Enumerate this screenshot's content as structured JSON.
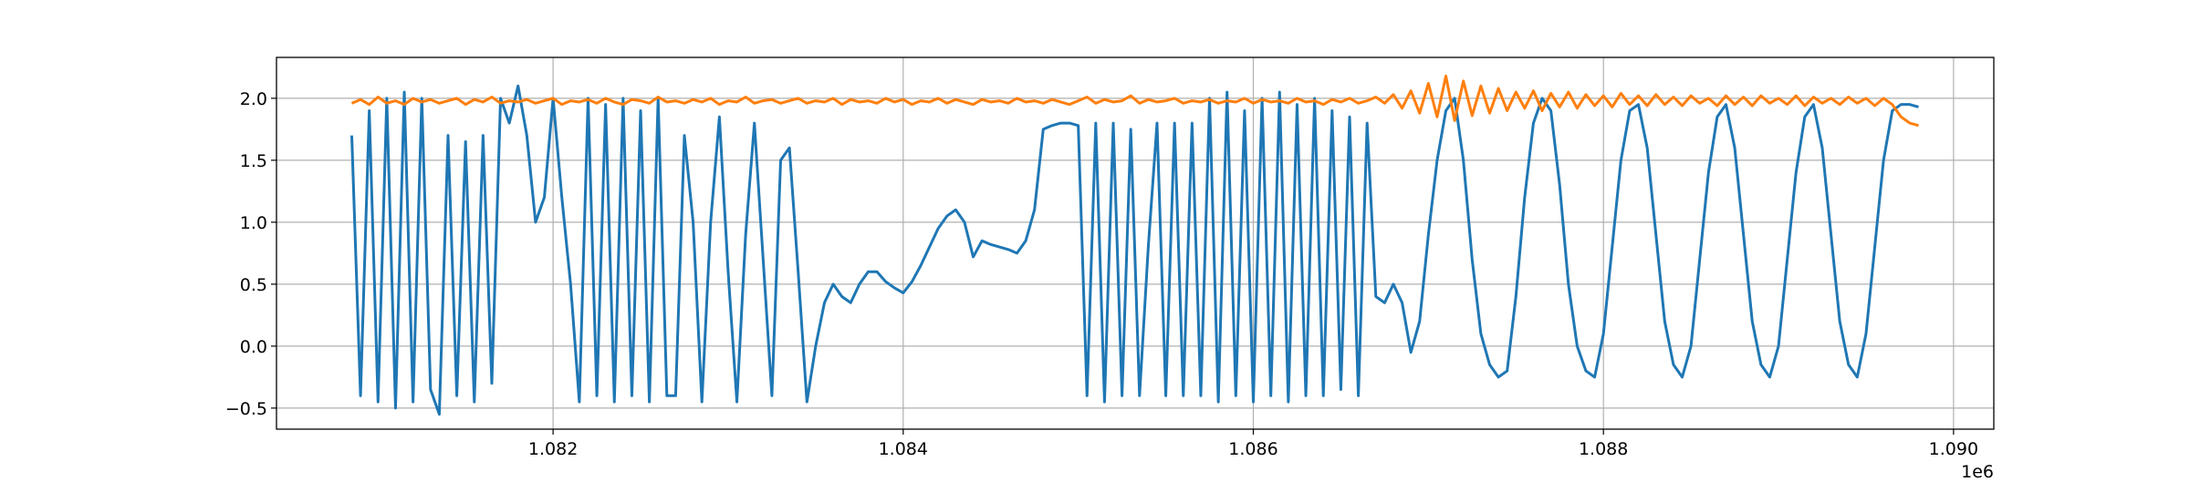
{
  "chart_data": {
    "type": "line",
    "x": [
      1080850,
      1080900,
      1080950,
      1081000,
      1081050,
      1081100,
      1081150,
      1081200,
      1081250,
      1081300,
      1081350,
      1081400,
      1081450,
      1081500,
      1081550,
      1081600,
      1081650,
      1081700,
      1081750,
      1081800,
      1081850,
      1081900,
      1081950,
      1082000,
      1082050,
      1082100,
      1082150,
      1082200,
      1082250,
      1082300,
      1082350,
      1082400,
      1082450,
      1082500,
      1082550,
      1082600,
      1082650,
      1082700,
      1082750,
      1082800,
      1082850,
      1082900,
      1082950,
      1083000,
      1083050,
      1083100,
      1083150,
      1083200,
      1083250,
      1083300,
      1083350,
      1083400,
      1083450,
      1083500,
      1083550,
      1083600,
      1083650,
      1083700,
      1083750,
      1083800,
      1083850,
      1083900,
      1083950,
      1084000,
      1084050,
      1084100,
      1084150,
      1084200,
      1084250,
      1084300,
      1084350,
      1084400,
      1084450,
      1084500,
      1084550,
      1084600,
      1084650,
      1084700,
      1084750,
      1084800,
      1084850,
      1084900,
      1084950,
      1085000,
      1085050,
      1085100,
      1085150,
      1085200,
      1085250,
      1085300,
      1085350,
      1085400,
      1085450,
      1085500,
      1085550,
      1085600,
      1085650,
      1085700,
      1085750,
      1085800,
      1085850,
      1085900,
      1085950,
      1086000,
      1086050,
      1086100,
      1086150,
      1086200,
      1086250,
      1086300,
      1086350,
      1086400,
      1086450,
      1086500,
      1086550,
      1086600,
      1086650,
      1086700,
      1086750,
      1086800,
      1086850,
      1086900,
      1086950,
      1087000,
      1087050,
      1087100,
      1087150,
      1087200,
      1087250,
      1087300,
      1087350,
      1087400,
      1087450,
      1087500,
      1087550,
      1087600,
      1087650,
      1087700,
      1087750,
      1087800,
      1087850,
      1087900,
      1087950,
      1088000,
      1088050,
      1088100,
      1088150,
      1088200,
      1088250,
      1088300,
      1088350,
      1088400,
      1088450,
      1088500,
      1088550,
      1088600,
      1088650,
      1088700,
      1088750,
      1088800,
      1088850,
      1088900,
      1088950,
      1089000,
      1089050,
      1089100,
      1089150,
      1089200,
      1089250,
      1089300,
      1089350,
      1089400,
      1089450,
      1089500,
      1089550,
      1089600,
      1089650,
      1089700,
      1089750,
      1089800
    ],
    "series": [
      {
        "color": "#1f77b4",
        "values": [
          1.7,
          -0.4,
          1.9,
          -0.45,
          2.0,
          -0.5,
          2.05,
          -0.45,
          2.0,
          -0.35,
          -0.55,
          1.7,
          -0.4,
          1.65,
          -0.45,
          1.7,
          -0.3,
          2.0,
          1.8,
          2.1,
          1.7,
          1.0,
          1.2,
          2.0,
          1.2,
          0.5,
          -0.45,
          2.0,
          -0.4,
          1.95,
          -0.45,
          2.0,
          -0.4,
          1.9,
          -0.45,
          2.0,
          -0.4,
          -0.4,
          1.7,
          1.0,
          -0.45,
          1.0,
          1.85,
          0.6,
          -0.45,
          0.9,
          1.8,
          0.7,
          -0.4,
          1.5,
          1.6,
          0.6,
          -0.45,
          0.0,
          0.35,
          0.5,
          0.4,
          0.35,
          0.5,
          0.6,
          0.6,
          0.52,
          0.47,
          0.43,
          0.52,
          0.65,
          0.8,
          0.95,
          1.05,
          1.1,
          1.0,
          0.72,
          0.85,
          0.82,
          0.8,
          0.78,
          0.75,
          0.85,
          1.1,
          1.75,
          1.78,
          1.8,
          1.8,
          1.78,
          -0.4,
          1.8,
          -0.45,
          1.8,
          -0.4,
          1.75,
          -0.4,
          0.8,
          1.8,
          -0.4,
          1.8,
          -0.4,
          1.8,
          -0.4,
          2.0,
          -0.45,
          2.05,
          -0.4,
          1.9,
          -0.45,
          2.0,
          -0.4,
          2.05,
          -0.45,
          1.95,
          -0.4,
          2.0,
          -0.4,
          1.9,
          -0.35,
          1.85,
          -0.4,
          1.8,
          0.4,
          0.35,
          0.5,
          0.35,
          -0.05,
          0.2,
          0.9,
          1.5,
          1.9,
          2.0,
          1.5,
          0.7,
          0.1,
          -0.15,
          -0.25,
          -0.2,
          0.4,
          1.2,
          1.8,
          2.0,
          1.9,
          1.3,
          0.5,
          0.0,
          -0.2,
          -0.25,
          0.1,
          0.8,
          1.5,
          1.9,
          1.95,
          1.6,
          0.9,
          0.2,
          -0.15,
          -0.25,
          0.0,
          0.7,
          1.4,
          1.85,
          1.95,
          1.6,
          0.9,
          0.2,
          -0.15,
          -0.25,
          0.0,
          0.7,
          1.4,
          1.85,
          1.95,
          1.6,
          0.9,
          0.2,
          -0.15,
          -0.25,
          0.1,
          0.8,
          1.5,
          1.9,
          1.95,
          1.95,
          1.93
        ]
      },
      {
        "color": "#ff7f0e",
        "values": [
          1.96,
          1.99,
          1.95,
          2.01,
          1.96,
          1.98,
          1.95,
          2.0,
          1.97,
          1.99,
          1.96,
          1.98,
          2.0,
          1.95,
          1.99,
          1.97,
          2.01,
          1.96,
          1.98,
          1.97,
          1.99,
          1.96,
          1.98,
          2.0,
          1.95,
          1.98,
          1.97,
          1.99,
          1.96,
          2.0,
          1.97,
          1.95,
          1.99,
          1.98,
          1.96,
          2.01,
          1.97,
          1.98,
          1.96,
          1.99,
          1.97,
          2.0,
          1.95,
          1.98,
          1.97,
          2.01,
          1.96,
          1.98,
          1.99,
          1.96,
          1.98,
          2.0,
          1.96,
          1.98,
          1.97,
          2.0,
          1.95,
          1.99,
          1.97,
          1.98,
          1.96,
          2.0,
          1.97,
          1.99,
          1.95,
          1.98,
          1.97,
          2.0,
          1.96,
          1.99,
          1.97,
          1.95,
          1.99,
          1.97,
          1.98,
          1.96,
          2.0,
          1.97,
          1.98,
          1.96,
          1.99,
          1.97,
          1.95,
          1.98,
          2.01,
          1.96,
          1.99,
          1.97,
          1.98,
          2.02,
          1.96,
          1.99,
          1.97,
          1.98,
          2.0,
          1.96,
          1.98,
          1.97,
          1.99,
          1.96,
          1.98,
          1.97,
          2.0,
          1.96,
          1.99,
          1.97,
          1.98,
          1.96,
          2.0,
          1.97,
          1.98,
          1.95,
          1.99,
          1.97,
          2.0,
          1.96,
          1.98,
          2.01,
          1.96,
          2.03,
          1.92,
          2.06,
          1.88,
          2.12,
          1.85,
          2.18,
          1.82,
          2.14,
          1.86,
          2.1,
          1.88,
          2.08,
          1.9,
          2.05,
          1.92,
          2.06,
          1.9,
          2.04,
          1.93,
          2.05,
          1.92,
          2.03,
          1.94,
          2.02,
          1.93,
          2.04,
          1.95,
          2.02,
          1.94,
          2.03,
          1.95,
          2.01,
          1.94,
          2.02,
          1.96,
          2.0,
          1.94,
          2.02,
          1.95,
          2.01,
          1.94,
          2.02,
          1.96,
          2.0,
          1.95,
          2.02,
          1.94,
          2.01,
          1.96,
          2.0,
          1.95,
          2.01,
          1.96,
          2.0,
          1.94,
          2.0,
          1.95,
          1.85,
          1.8,
          1.78
        ]
      }
    ],
    "xlim": [
      1080420,
      1090230
    ],
    "ylim": [
      -0.67,
      2.33
    ],
    "xticks": [
      {
        "value": 1082000,
        "label": "1.082"
      },
      {
        "value": 1084000,
        "label": "1.084"
      },
      {
        "value": 1086000,
        "label": "1.086"
      },
      {
        "value": 1088000,
        "label": "1.088"
      },
      {
        "value": 1090000,
        "label": "1.090"
      }
    ],
    "x_offset_label": "1e6",
    "yticks": [
      {
        "value": -0.5,
        "label": "−0.5"
      },
      {
        "value": 0,
        "label": "0.0"
      },
      0.5,
      {
        "value": 1,
        "label": "1.0"
      },
      1.5,
      {
        "value": 2,
        "label": "2.0"
      }
    ],
    "grid": true
  }
}
